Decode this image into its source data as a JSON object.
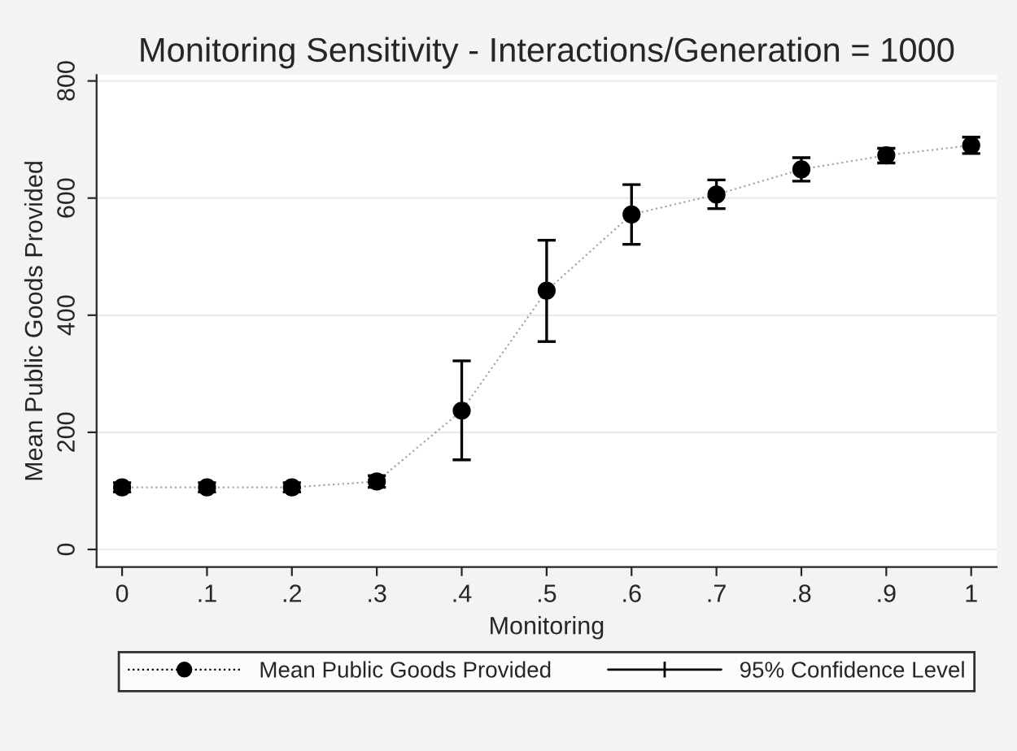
{
  "chart_data": {
    "type": "line",
    "title": "Monitoring Sensitivity - Interactions/Generation = 1000",
    "xlabel": "Monitoring",
    "ylabel": "Mean Public Goods Provided",
    "x": [
      0,
      0.1,
      0.2,
      0.3,
      0.4,
      0.5,
      0.6,
      0.7,
      0.8,
      0.9,
      1
    ],
    "series": [
      {
        "name": "Mean Public Goods Provided",
        "color": "#000000",
        "values": [
          106,
          106,
          106,
          116,
          237,
          442,
          572,
          606,
          649,
          673,
          690
        ],
        "errors": [
          [
            98,
            114
          ],
          [
            98,
            114
          ],
          [
            98,
            114
          ],
          [
            106,
            126
          ],
          [
            153,
            322
          ],
          [
            355,
            528
          ],
          [
            521,
            623
          ],
          [
            582,
            631
          ],
          [
            629,
            669
          ],
          [
            660,
            685
          ],
          [
            676,
            704
          ]
        ]
      }
    ],
    "annotations": [
      "95% Confidence Level"
    ],
    "xlim": [
      -0.03,
      1.03
    ],
    "ylim": [
      -30,
      810
    ],
    "xticks": [
      {
        "value": 0,
        "label": "0"
      },
      {
        "value": 0.1,
        "label": ".1"
      },
      {
        "value": 0.2,
        "label": ".2"
      },
      {
        "value": 0.3,
        "label": ".3"
      },
      {
        "value": 0.4,
        "label": ".4"
      },
      {
        "value": 0.5,
        "label": ".5"
      },
      {
        "value": 0.6,
        "label": ".6"
      },
      {
        "value": 0.7,
        "label": ".7"
      },
      {
        "value": 0.8,
        "label": ".8"
      },
      {
        "value": 0.9,
        "label": ".9"
      },
      {
        "value": 1,
        "label": "1"
      }
    ],
    "yticks": [
      0,
      200,
      400,
      600,
      800
    ],
    "grid": "y",
    "legend": "bottom",
    "marker": "circle",
    "line_style": "dotted"
  }
}
